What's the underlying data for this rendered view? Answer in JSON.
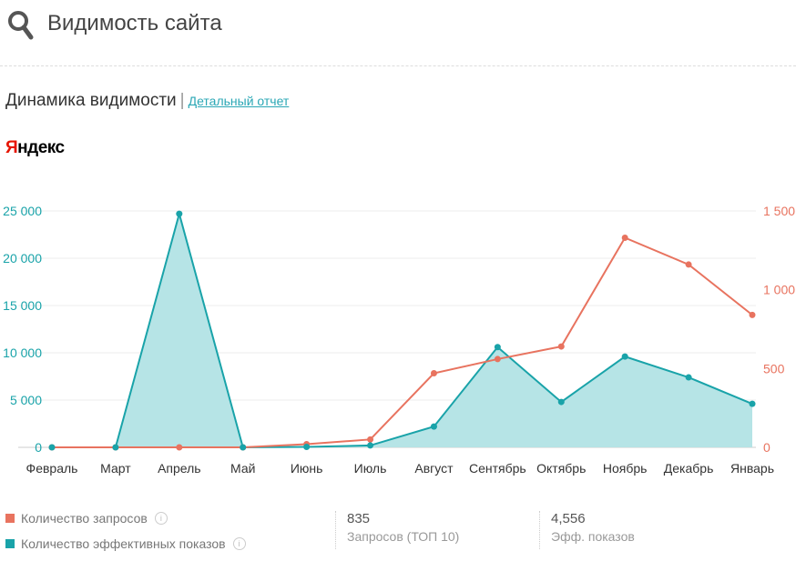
{
  "header": {
    "title": "Видимость сайта",
    "icon": "search-icon"
  },
  "section": {
    "title": "Динамика видимости",
    "separator": "|",
    "report_link": "Детальный отчет"
  },
  "engine": {
    "first_letter": "Я",
    "rest": "ндекс"
  },
  "colors": {
    "requests": "#e8735f",
    "impressions": "#19a3a9",
    "impressions_fill": "#b2e3e5",
    "link": "#2aa7b5"
  },
  "chart_data": {
    "type": "line",
    "categories": [
      "Февраль",
      "Март",
      "Апрель",
      "Май",
      "Июнь",
      "Июль",
      "Август",
      "Сентябрь",
      "Октябрь",
      "Ноябрь",
      "Декабрь",
      "Январь"
    ],
    "series": [
      {
        "name": "Количество эффективных показов",
        "axis": "left",
        "style": "area",
        "color": "#19a3a9",
        "values": [
          0,
          0,
          24700,
          0,
          50,
          200,
          2200,
          10600,
          4800,
          9600,
          7400,
          4600
        ]
      },
      {
        "name": "Количество запросов",
        "axis": "right",
        "style": "line",
        "color": "#e8735f",
        "values": [
          0,
          0,
          0,
          0,
          20,
          50,
          470,
          560,
          640,
          1330,
          1160,
          840
        ]
      }
    ],
    "y_left": {
      "ylim": [
        0,
        25000
      ],
      "ticks": [
        "0",
        "5 000",
        "10 000",
        "15 000",
        "20 000",
        "25 000"
      ],
      "tick_values": [
        0,
        5000,
        10000,
        15000,
        20000,
        25000
      ]
    },
    "y_right": {
      "ylim": [
        0,
        1500
      ],
      "ticks": [
        "0",
        "500",
        "1 000",
        "1 500"
      ],
      "tick_values": [
        0,
        500,
        1000,
        1500
      ]
    },
    "grid": true,
    "legend": "bottom-left"
  },
  "legend": [
    {
      "label": "Количество запросов",
      "color": "#e8735f",
      "info": "i"
    },
    {
      "label": "Количество эффективных показов",
      "color": "#19a3a9",
      "info": "i"
    }
  ],
  "stats": [
    {
      "value": "835",
      "label": "Запросов (ТОП 10)"
    },
    {
      "value": "4,556",
      "label": "Эфф. показов"
    }
  ]
}
